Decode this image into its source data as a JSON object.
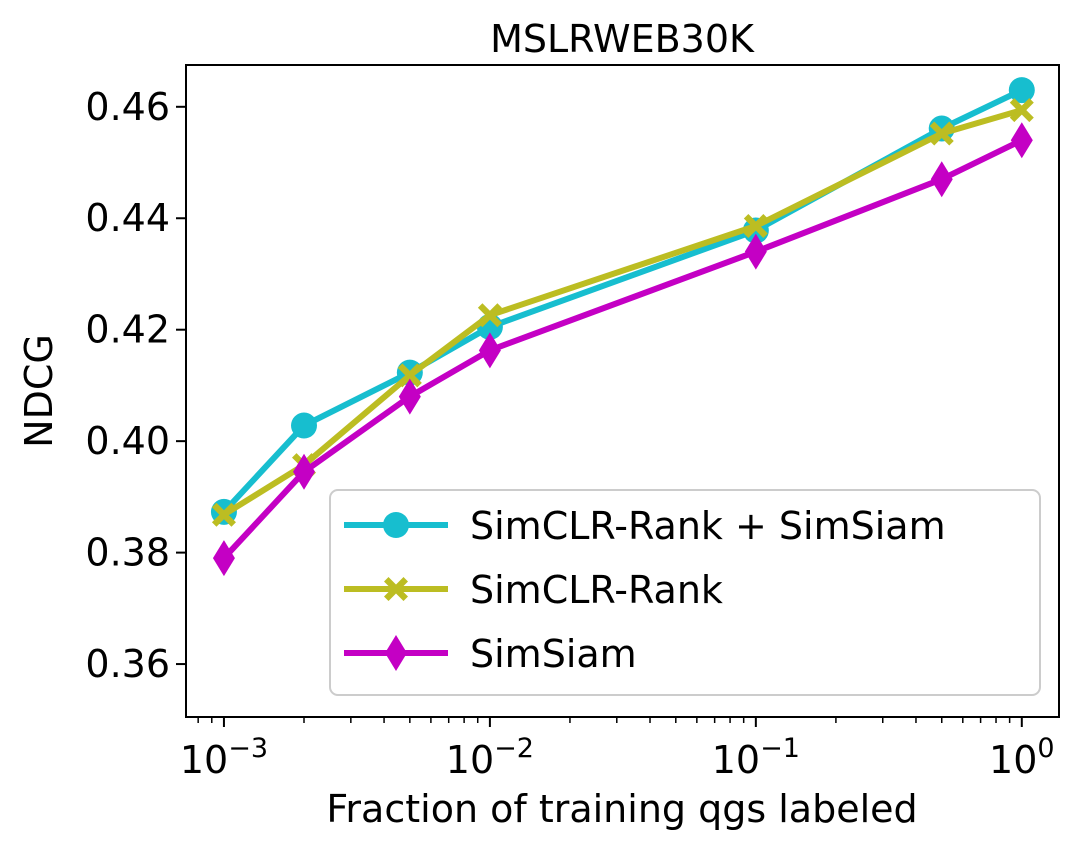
{
  "chart_data": {
    "type": "line",
    "title": "MSLRWEB30K",
    "xlabel": "Fraction of training qgs labeled",
    "ylabel": "NDCG",
    "xscale": "log",
    "xlim": [
      0.00072,
      1.38
    ],
    "ylim": [
      0.3505,
      0.4675
    ],
    "grid": false,
    "legend_position": "lower right",
    "x": [
      0.001,
      0.002,
      0.005,
      0.01,
      0.1,
      0.5,
      1.0
    ],
    "x_ticks": [
      {
        "value": 0.001,
        "base": "10",
        "exp": "−3"
      },
      {
        "value": 0.01,
        "base": "10",
        "exp": "−2"
      },
      {
        "value": 0.1,
        "base": "10",
        "exp": "−1"
      },
      {
        "value": 1.0,
        "base": "10",
        "exp": "0"
      }
    ],
    "y_ticks": [
      {
        "value": 0.36,
        "label": "0.36"
      },
      {
        "value": 0.38,
        "label": "0.38"
      },
      {
        "value": 0.4,
        "label": "0.40"
      },
      {
        "value": 0.42,
        "label": "0.42"
      },
      {
        "value": 0.44,
        "label": "0.44"
      },
      {
        "value": 0.46,
        "label": "0.46"
      }
    ],
    "series": [
      {
        "name": "SimCLR-Rank + SimSiam",
        "color": "#17becf",
        "marker": "circle",
        "values": [
          0.3873,
          0.4028,
          0.4123,
          0.4205,
          0.4378,
          0.4561,
          0.463
        ]
      },
      {
        "name": "SimCLR-Rank",
        "color": "#bcbd22",
        "marker": "x",
        "values": [
          0.3868,
          0.3957,
          0.4118,
          0.4226,
          0.4386,
          0.4552,
          0.4594
        ]
      },
      {
        "name": "SimSiam",
        "color": "#c400c4",
        "marker": "diamond",
        "values": [
          0.379,
          0.3945,
          0.408,
          0.4163,
          0.434,
          0.447,
          0.454
        ]
      }
    ]
  }
}
